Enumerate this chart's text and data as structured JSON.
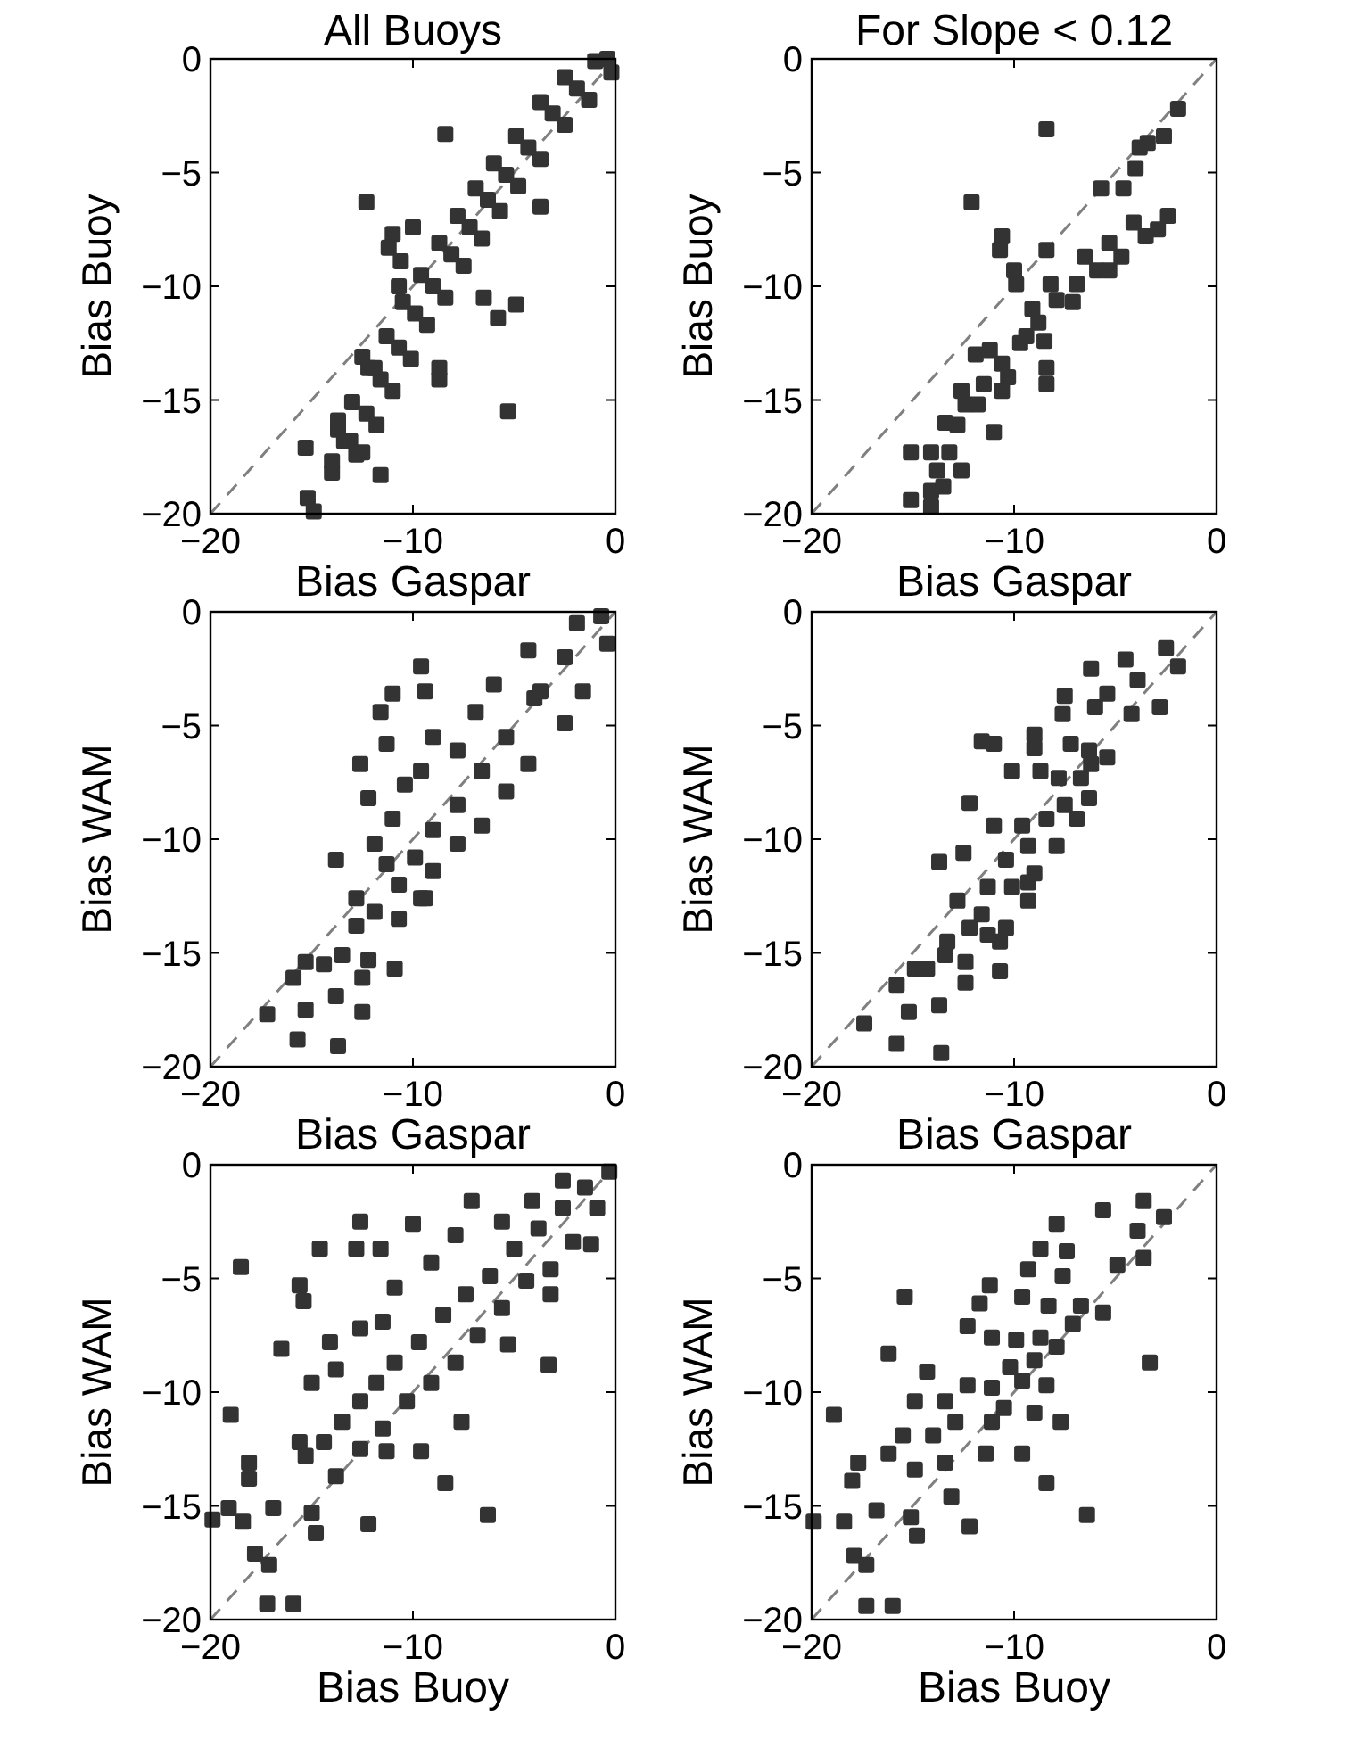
{
  "chart_data": [
    {
      "type": "scatter",
      "title": "All Buoys",
      "xlabel": "Bias Gaspar",
      "ylabel": "Bias Buoy",
      "xlim": [
        -20,
        0
      ],
      "ylim": [
        -20,
        0
      ],
      "xticks": [
        -20,
        -10,
        0
      ],
      "yticks": [
        -20,
        -15,
        -10,
        -5,
        0
      ],
      "series": [
        {
          "type": "line",
          "color": "#808080",
          "line_style": "dashed",
          "x": [
            -20,
            0
          ],
          "values": [
            -20,
            0
          ]
        },
        {
          "color": "#333333",
          "marker": "square",
          "x": [
            -0.4,
            -1.9,
            -3.1,
            -4.3,
            -5.4,
            -6.3,
            -7.2,
            -8.1,
            -9.0,
            -9.9,
            -10.7,
            -11.6,
            -12.3,
            -13.1,
            -14.0,
            -1.0,
            -2.5,
            -3.7,
            -4.9,
            -6.0,
            -6.9,
            -7.8,
            -8.7,
            -9.6,
            -10.5,
            -11.3,
            -12.2,
            -13.0,
            -13.7,
            -0.2,
            -1.3,
            -2.5,
            -3.7,
            -4.8,
            -5.7,
            -6.6,
            -7.5,
            -8.4,
            -9.3,
            -10.1,
            -11.0,
            -11.8,
            -12.5,
            -8.4,
            -12.3,
            -11.0,
            -11.2,
            -10.0,
            -3.7,
            -6.5,
            -4.9,
            -5.8,
            -8.7,
            -8.7,
            -5.3,
            -15.3,
            -11.6,
            -15.2,
            -14.9,
            -13.7,
            -13.4,
            -14.0,
            -12.8,
            -12.5,
            -11.9,
            -10.7,
            -10.6
          ],
          "values": [
            0,
            -1.3,
            -2.4,
            -3.9,
            -5.1,
            -6.2,
            -7.4,
            -8.6,
            -10.0,
            -11.2,
            -12.7,
            -14.1,
            -15.6,
            -16.8,
            -18.2,
            -0.1,
            -0.8,
            -1.9,
            -3.4,
            -4.6,
            -5.7,
            -6.9,
            -8.1,
            -9.5,
            -10.7,
            -12.2,
            -13.6,
            -15.1,
            -16.3,
            -0.6,
            -1.8,
            -2.9,
            -4.4,
            -5.6,
            -6.7,
            -7.9,
            -9.1,
            -10.5,
            -11.7,
            -13.2,
            -14.6,
            -16.1,
            -17.3,
            -3.3,
            -6.3,
            -7.7,
            -8.3,
            -7.4,
            -6.5,
            -10.5,
            -10.8,
            -11.4,
            -13.6,
            -14.1,
            -15.5,
            -17.1,
            -18.3,
            -19.3,
            -19.9,
            -15.9,
            -16.8,
            -17.7,
            -17.4,
            -13.1,
            -13.6,
            -10.0,
            -8.9
          ]
        }
      ]
    },
    {
      "type": "scatter",
      "title": "For Slope < 0.12",
      "xlabel": "Bias Gaspar",
      "ylabel": "Bias Buoy",
      "xlim": [
        -20,
        0
      ],
      "ylim": [
        -20,
        0
      ],
      "xticks": [
        -20,
        -10,
        0
      ],
      "yticks": [
        -20,
        -15,
        -10,
        -5,
        0
      ],
      "series": [
        {
          "type": "line",
          "color": "#808080",
          "line_style": "dashed",
          "x": [
            -20,
            0
          ],
          "values": [
            -20,
            0
          ]
        },
        {
          "color": "#333333",
          "marker": "square",
          "x": [
            -1.9,
            -2.6,
            -3.4,
            -3.8,
            -4.0,
            -4.6,
            -5.7,
            -8.4,
            -12.1,
            -10.6,
            -10.7,
            -10.0,
            -9.9,
            -8.4,
            -8.5,
            -8.4,
            -8.4,
            -11.0,
            -11.9,
            -2.4,
            -3.5,
            -4.7,
            -5.9,
            -6.9,
            -7.9,
            -8.8,
            -9.7,
            -10.6,
            -11.5,
            -12.4,
            -12.8,
            -2.9,
            -4.1,
            -5.3,
            -6.5,
            -5.3,
            -7.1,
            -8.2,
            -9.1,
            -9.4,
            -10.3,
            -11.2,
            -11.8,
            -12.6,
            -10.6,
            -13.4,
            -15.1,
            -14.1,
            -13.8,
            -14.1,
            -12.6,
            -15.1,
            -14.1,
            -13.5,
            -13.2
          ],
          "values": [
            -2.2,
            -3.4,
            -3.7,
            -3.9,
            -4.8,
            -5.7,
            -5.7,
            -3.1,
            -6.3,
            -7.8,
            -8.4,
            -9.3,
            -9.9,
            -8.4,
            -12.4,
            -13.6,
            -14.3,
            -16.4,
            -13.0,
            -6.9,
            -7.8,
            -8.7,
            -9.3,
            -9.9,
            -10.6,
            -11.6,
            -12.5,
            -13.4,
            -14.3,
            -15.2,
            -16.1,
            -7.5,
            -7.2,
            -8.1,
            -8.7,
            -9.3,
            -10.7,
            -9.9,
            -11.0,
            -12.2,
            -14.0,
            -12.8,
            -15.2,
            -14.6,
            -14.6,
            -16.0,
            -17.3,
            -17.3,
            -18.1,
            -19.0,
            -18.1,
            -19.4,
            -19.7,
            -18.8,
            -17.3
          ]
        }
      ]
    },
    {
      "type": "scatter",
      "xlabel": "Bias Gaspar",
      "ylabel": "Bias WAM",
      "xlim": [
        -20,
        0
      ],
      "ylim": [
        -20,
        0
      ],
      "xticks": [
        -20,
        -10,
        0
      ],
      "yticks": [
        -20,
        -15,
        -10,
        -5,
        0
      ],
      "series": [
        {
          "type": "line",
          "color": "#808080",
          "line_style": "dashed",
          "x": [
            -20,
            0
          ],
          "values": [
            -20,
            0
          ]
        },
        {
          "color": "#333333",
          "marker": "square",
          "x": [
            -0.7,
            -2.5,
            -4.0,
            -5.4,
            -6.6,
            -7.8,
            -9.0,
            -9.9,
            -10.7,
            -11.9,
            -12.8,
            -1.9,
            -4.3,
            -6.0,
            -6.9,
            -7.8,
            -9.0,
            -9.6,
            -10.4,
            -11.0,
            -11.9,
            -11.3,
            -12.8,
            -0.4,
            -1.6,
            -2.5,
            -4.3,
            -5.4,
            -6.6,
            -7.8,
            -9.0,
            -9.6,
            -10.7,
            -9.6,
            -9.4,
            -11.0,
            -11.6,
            -11.3,
            -12.6,
            -12.2,
            -13.8,
            -9.4,
            -13.5,
            -14.4,
            -15.3,
            -12.2,
            -10.9,
            -12.5,
            -13.8,
            -15.9,
            -15.3,
            -12.5,
            -17.2,
            -15.7,
            -13.7,
            -3.7
          ],
          "values": [
            -0.2,
            -2.0,
            -3.8,
            -5.5,
            -7.0,
            -8.5,
            -9.6,
            -10.8,
            -12.0,
            -13.2,
            -13.8,
            -0.5,
            -1.7,
            -3.2,
            -4.4,
            -6.1,
            -5.5,
            -7.0,
            -7.6,
            -9.1,
            -10.2,
            -11.1,
            -12.6,
            -1.4,
            -3.5,
            -4.9,
            -6.7,
            -7.9,
            -9.4,
            -10.2,
            -11.4,
            -12.6,
            -13.5,
            -2.4,
            -3.5,
            -3.6,
            -4.4,
            -5.8,
            -6.7,
            -8.2,
            -10.9,
            -12.6,
            -15.1,
            -15.5,
            -15.4,
            -15.3,
            -15.7,
            -16.1,
            -16.9,
            -16.1,
            -17.5,
            -17.6,
            -17.7,
            -18.8,
            -19.1,
            -3.5
          ]
        }
      ]
    },
    {
      "type": "scatter",
      "xlabel": "Bias Gaspar",
      "ylabel": "Bias WAM",
      "xlim": [
        -20,
        0
      ],
      "ylim": [
        -20,
        0
      ],
      "xticks": [
        -20,
        -10,
        0
      ],
      "yticks": [
        -20,
        -15,
        -10,
        -5,
        0
      ],
      "series": [
        {
          "type": "line",
          "color": "#808080",
          "line_style": "dashed",
          "x": [
            -20,
            0
          ],
          "values": [
            -20,
            0
          ]
        },
        {
          "color": "#333333",
          "marker": "square",
          "x": [
            -2.5,
            -1.9,
            -4.5,
            -3.9,
            -6.2,
            -7.5,
            -7.6,
            -6.0,
            -5.4,
            -4.2,
            -2.8,
            -9.0,
            -9.0,
            -11.6,
            -11.0,
            -7.2,
            -6.3,
            -5.4,
            -10.1,
            -8.7,
            -7.8,
            -6.7,
            -6.3,
            -7.5,
            -8.4,
            -9.6,
            -11.0,
            -12.2,
            -6.9,
            -7.9,
            -9.3,
            -10.4,
            -12.5,
            -13.7,
            -9.0,
            -10.1,
            -11.3,
            -12.8,
            -11.6,
            -12.2,
            -10.4,
            -9.3,
            -10.7,
            -11.3,
            -10.7,
            -12.4,
            -12.4,
            -13.4,
            -14.9,
            -14.3,
            -15.8,
            -13.7,
            -15.2,
            -17.4,
            -15.8,
            -13.6,
            -13.3,
            -9.3,
            -6.2
          ],
          "values": [
            -1.6,
            -2.4,
            -2.1,
            -3.0,
            -2.5,
            -3.7,
            -4.5,
            -4.2,
            -3.6,
            -4.5,
            -4.2,
            -5.4,
            -6.0,
            -5.7,
            -5.8,
            -5.8,
            -6.1,
            -6.4,
            -7.0,
            -7.0,
            -7.3,
            -7.3,
            -8.2,
            -8.5,
            -9.1,
            -9.4,
            -9.4,
            -8.4,
            -9.1,
            -10.3,
            -10.3,
            -10.9,
            -10.6,
            -11.0,
            -11.5,
            -12.1,
            -12.1,
            -12.7,
            -13.3,
            -13.9,
            -13.9,
            -12.7,
            -14.5,
            -14.2,
            -15.8,
            -15.4,
            -16.3,
            -15.1,
            -15.7,
            -15.7,
            -16.4,
            -17.3,
            -17.6,
            -18.1,
            -19.0,
            -19.4,
            -14.5,
            -11.9,
            -6.7
          ]
        }
      ]
    },
    {
      "type": "scatter",
      "xlabel": "Bias Buoy",
      "ylabel": "Bias WAM",
      "xlim": [
        -20,
        0
      ],
      "ylim": [
        -20,
        0
      ],
      "xticks": [
        -20,
        -10,
        0
      ],
      "yticks": [
        -20,
        -15,
        -10,
        -5,
        0
      ],
      "series": [
        {
          "type": "line",
          "color": "#808080",
          "line_style": "dashed",
          "x": [
            -20,
            0
          ],
          "values": [
            -20,
            0
          ]
        },
        {
          "color": "#333333",
          "marker": "square",
          "x": [
            -0.3,
            -1.5,
            -2.6,
            -3.8,
            -5.0,
            -6.2,
            -7.4,
            -8.5,
            -9.7,
            -10.9,
            -11.8,
            -12.6,
            -13.5,
            -14.4,
            -15.3,
            -2.6,
            -4.1,
            -5.6,
            -7.1,
            -7.9,
            -9.1,
            -10.9,
            -11.5,
            -12.6,
            -13.8,
            -15.0,
            -15.6,
            -0.9,
            -2.1,
            -3.2,
            -4.4,
            -5.6,
            -6.8,
            -7.9,
            -9.1,
            -10.3,
            -11.5,
            -12.6,
            -13.8,
            -12.6,
            -10.0,
            -14.6,
            -12.8,
            -11.6,
            -18.5,
            -15.6,
            -15.4,
            -16.5,
            -14.1,
            -3.2,
            -1.2,
            -3.3,
            -5.3,
            -7.6,
            -19.0,
            -18.1,
            -18.1,
            -11.3,
            -9.6,
            -8.4,
            -6.3,
            -19.1,
            -18.4,
            -16.9,
            -15.0,
            -12.2,
            -14.8,
            -17.8,
            -17.1,
            -17.2,
            -15.9,
            -19.9
          ],
          "values": [
            -0.3,
            -1.0,
            -1.9,
            -2.8,
            -3.7,
            -4.9,
            -5.7,
            -6.6,
            -7.8,
            -8.7,
            -9.6,
            -10.4,
            -11.3,
            -12.2,
            -12.8,
            -0.7,
            -1.6,
            -2.5,
            -1.6,
            -3.1,
            -4.3,
            -5.4,
            -6.9,
            -7.2,
            -9.0,
            -9.6,
            -12.2,
            -1.9,
            -3.4,
            -4.6,
            -5.1,
            -6.3,
            -7.5,
            -8.7,
            -9.6,
            -10.4,
            -11.6,
            -12.5,
            -13.7,
            -2.5,
            -2.6,
            -3.7,
            -3.7,
            -3.7,
            -4.5,
            -5.3,
            -6.0,
            -8.1,
            -7.8,
            -5.7,
            -3.5,
            -8.8,
            -7.9,
            -11.3,
            -11.0,
            -13.1,
            -13.8,
            -12.6,
            -12.6,
            -14.0,
            -15.4,
            -15.1,
            -15.7,
            -15.1,
            -15.3,
            -15.8,
            -16.2,
            -17.1,
            -17.6,
            -19.3,
            -19.3,
            -15.6
          ]
        }
      ]
    },
    {
      "type": "scatter",
      "xlabel": "Bias Buoy",
      "ylabel": "Bias WAM",
      "xlim": [
        -20,
        0
      ],
      "ylim": [
        -20,
        0
      ],
      "xticks": [
        -20,
        -10,
        0
      ],
      "yticks": [
        -20,
        -15,
        -10,
        -5,
        0
      ],
      "series": [
        {
          "type": "line",
          "color": "#808080",
          "line_style": "dashed",
          "x": [
            -20,
            0
          ],
          "values": [
            -20,
            0
          ]
        },
        {
          "color": "#333333",
          "marker": "square",
          "x": [
            -3.6,
            -2.6,
            -5.6,
            -3.9,
            -3.6,
            -4.9,
            -7.9,
            -8.7,
            -7.4,
            -7.6,
            -9.3,
            -11.2,
            -11.7,
            -15.4,
            -9.6,
            -8.3,
            -6.7,
            -5.6,
            -7.1,
            -12.3,
            -11.1,
            -9.9,
            -8.7,
            -7.9,
            -9.0,
            -10.2,
            -3.3,
            -16.2,
            -14.3,
            -9.6,
            -8.4,
            -11.1,
            -12.3,
            -13.4,
            -14.9,
            -18.9,
            -10.5,
            -9.0,
            -7.7,
            -11.1,
            -12.9,
            -14.0,
            -15.5,
            -11.4,
            -9.6,
            -13.4,
            -14.9,
            -16.2,
            -17.7,
            -18.0,
            -8.4,
            -13.1,
            -12.2,
            -6.4,
            -16.8,
            -18.4,
            -19.9,
            -15.1,
            -14.8,
            -17.9,
            -17.3,
            -17.3,
            -16.0
          ],
          "values": [
            -1.6,
            -2.3,
            -2.0,
            -2.9,
            -4.1,
            -4.4,
            -2.6,
            -3.7,
            -3.8,
            -4.9,
            -4.6,
            -5.3,
            -6.1,
            -5.8,
            -5.8,
            -6.2,
            -6.2,
            -6.5,
            -7.0,
            -7.1,
            -7.6,
            -7.7,
            -7.6,
            -8.0,
            -8.6,
            -8.9,
            -8.7,
            -8.3,
            -9.1,
            -9.5,
            -9.7,
            -9.8,
            -9.7,
            -10.4,
            -10.4,
            -11.0,
            -10.7,
            -10.9,
            -11.3,
            -11.3,
            -11.3,
            -11.9,
            -11.9,
            -12.7,
            -12.7,
            -13.1,
            -13.4,
            -12.7,
            -13.1,
            -13.9,
            -14.0,
            -14.6,
            -15.9,
            -15.4,
            -15.2,
            -15.7,
            -15.7,
            -15.5,
            -16.3,
            -17.2,
            -17.6,
            -19.4,
            -19.4
          ]
        }
      ]
    }
  ]
}
